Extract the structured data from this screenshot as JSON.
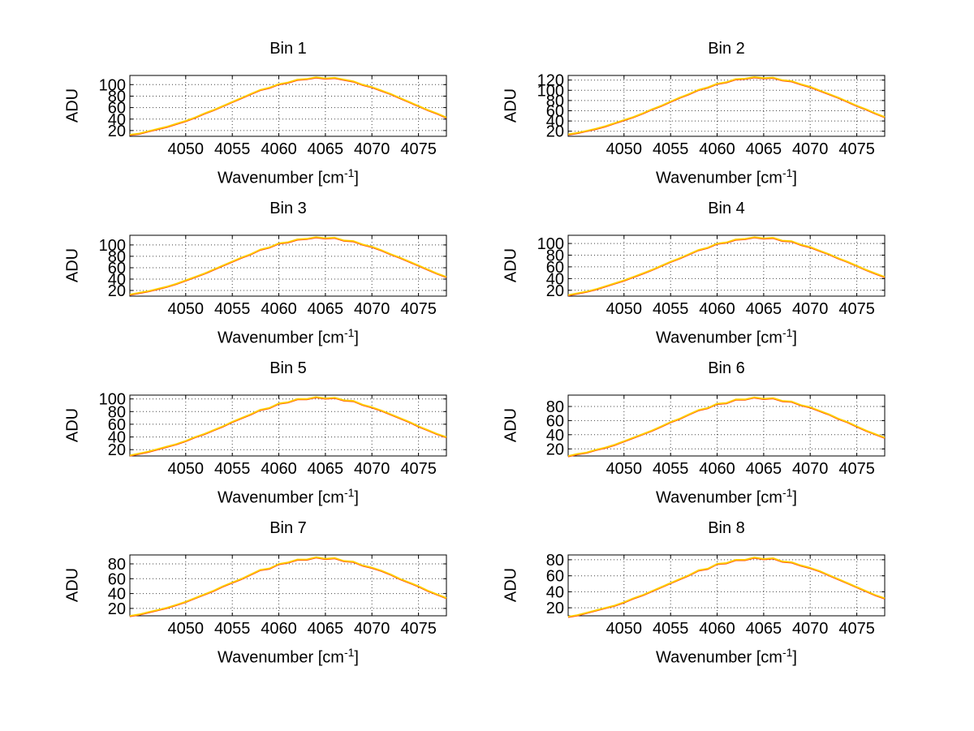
{
  "figure": {
    "background": "#ffffff"
  },
  "labels": {
    "ylabel": "ADU",
    "xlabel_prefix": "Wavenumber [cm",
    "xlabel_sup": "-1",
    "xlabel_suffix": "]"
  },
  "chart_data": {
    "type": "line",
    "layout": "4x2-grid",
    "x_label": "Wavenumber [cm^-1]",
    "y_label": "ADU",
    "grid": "dotted",
    "line_color": "#ffd000",
    "line_undercolor": "#ff4000",
    "xlim": [
      4044,
      4078
    ],
    "xticks": [
      4050,
      4055,
      4060,
      4065,
      4070,
      4075
    ],
    "x": [
      4044,
      4045,
      4046,
      4047,
      4048,
      4049,
      4050,
      4051,
      4052,
      4053,
      4054,
      4055,
      4056,
      4057,
      4058,
      4059,
      4060,
      4061,
      4062,
      4063,
      4064,
      4065,
      4066,
      4067,
      4068,
      4069,
      4070,
      4071,
      4072,
      4073,
      4074,
      4075,
      4076,
      4077,
      4078
    ],
    "panels": [
      {
        "title": "Bin 1",
        "yticks": [
          20,
          40,
          60,
          80,
          100
        ],
        "ylim": [
          10,
          116
        ],
        "values": [
          13,
          15,
          19,
          23,
          27,
          32,
          37,
          43,
          50,
          56,
          63,
          70,
          77,
          84,
          91,
          95,
          101,
          104,
          109,
          110,
          113,
          111,
          112,
          109,
          106,
          100,
          96,
          90,
          84,
          77,
          70,
          63,
          56,
          50,
          43
        ]
      },
      {
        "title": "Bin 2",
        "yticks": [
          20,
          40,
          60,
          80,
          100,
          120
        ],
        "ylim": [
          10,
          129
        ],
        "values": [
          14,
          17,
          21,
          25,
          30,
          36,
          42,
          48,
          55,
          63,
          70,
          78,
          86,
          93,
          101,
          106,
          113,
          116,
          122,
          123,
          126,
          124,
          125,
          120,
          118,
          112,
          107,
          100,
          93,
          86,
          78,
          70,
          63,
          55,
          48
        ]
      },
      {
        "title": "Bin 3",
        "yticks": [
          20,
          40,
          60,
          80,
          100
        ],
        "ylim": [
          10,
          117
        ],
        "values": [
          13,
          16,
          19,
          23,
          27,
          32,
          38,
          44,
          50,
          57,
          64,
          71,
          78,
          84,
          92,
          96,
          103,
          105,
          110,
          111,
          114,
          112,
          113,
          108,
          107,
          101,
          97,
          91,
          84,
          78,
          71,
          64,
          57,
          50,
          44
        ]
      },
      {
        "title": "Bin 4",
        "yticks": [
          20,
          40,
          60,
          80,
          100
        ],
        "ylim": [
          10,
          114
        ],
        "values": [
          12,
          15,
          18,
          22,
          27,
          32,
          37,
          43,
          49,
          55,
          62,
          69,
          75,
          82,
          89,
          93,
          100,
          102,
          107,
          108,
          111,
          109,
          110,
          105,
          104,
          98,
          94,
          88,
          82,
          75,
          69,
          62,
          55,
          49,
          43
        ]
      },
      {
        "title": "Bin 5",
        "yticks": [
          20,
          40,
          60,
          80,
          100
        ],
        "ylim": [
          10,
          106
        ],
        "values": [
          11,
          14,
          17,
          21,
          25,
          29,
          34,
          40,
          45,
          51,
          57,
          64,
          70,
          76,
          83,
          86,
          93,
          95,
          100,
          100,
          103,
          101,
          102,
          98,
          97,
          91,
          87,
          82,
          76,
          70,
          64,
          57,
          51,
          45,
          40
        ]
      },
      {
        "title": "Bin 6",
        "yticks": [
          20,
          40,
          60,
          80
        ],
        "ylim": [
          10,
          96
        ],
        "values": [
          10,
          13,
          15,
          19,
          22,
          26,
          31,
          36,
          41,
          46,
          52,
          58,
          63,
          69,
          75,
          78,
          84,
          85,
          90,
          90,
          93,
          91,
          92,
          88,
          87,
          82,
          79,
          74,
          69,
          63,
          58,
          52,
          46,
          41,
          36
        ]
      },
      {
        "title": "Bin 7",
        "yticks": [
          20,
          40,
          60,
          80
        ],
        "ylim": [
          10,
          92
        ],
        "values": [
          10,
          12,
          15,
          18,
          21,
          25,
          29,
          34,
          39,
          44,
          50,
          55,
          60,
          66,
          72,
          74,
          80,
          82,
          86,
          86,
          89,
          87,
          88,
          84,
          83,
          78,
          75,
          71,
          66,
          60,
          55,
          50,
          44,
          39,
          34
        ]
      },
      {
        "title": "Bin 8",
        "yticks": [
          20,
          40,
          60,
          80
        ],
        "ylim": [
          10,
          86
        ],
        "values": [
          9,
          11,
          14,
          17,
          20,
          23,
          27,
          32,
          36,
          41,
          46,
          51,
          56,
          61,
          67,
          69,
          75,
          76,
          80,
          80,
          83,
          81,
          82,
          78,
          77,
          73,
          70,
          66,
          61,
          56,
          51,
          46,
          41,
          36,
          32
        ]
      }
    ]
  }
}
